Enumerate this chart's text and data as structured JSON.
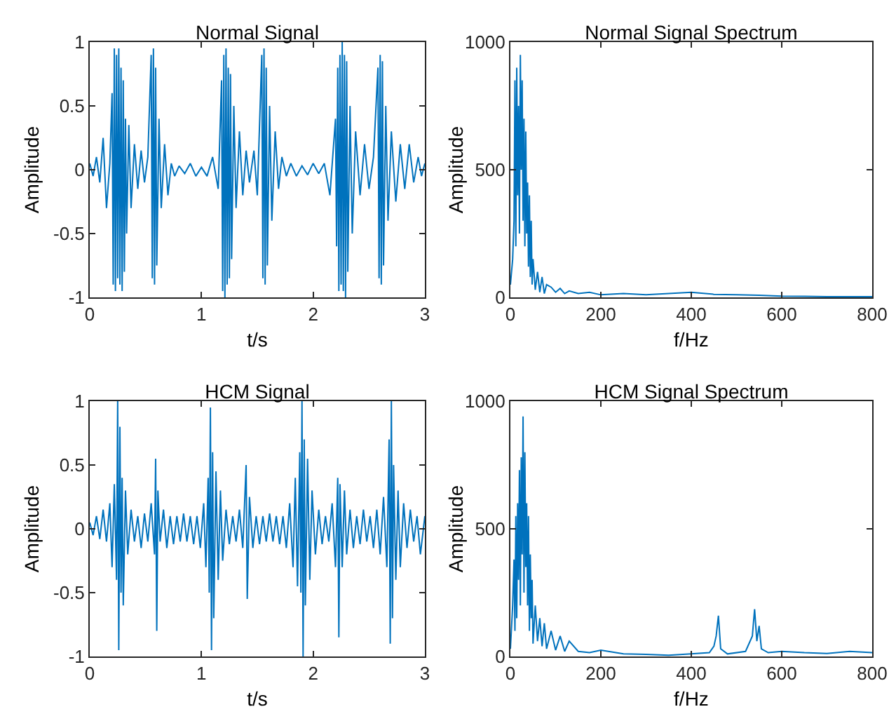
{
  "chart_data": [
    {
      "type": "line",
      "title": "Normal Signal",
      "xlabel": "t/s",
      "ylabel": "Amplitude",
      "color": "#0072bd",
      "xlim": [
        0,
        3
      ],
      "ylim": [
        -1,
        1
      ],
      "xticks": [
        0,
        1,
        2,
        3
      ],
      "yticks": [
        -1,
        -0.5,
        0,
        0.5,
        1
      ],
      "x": [
        0,
        0.03,
        0.06,
        0.09,
        0.12,
        0.15,
        0.18,
        0.2,
        0.21,
        0.22,
        0.23,
        0.24,
        0.25,
        0.26,
        0.27,
        0.28,
        0.29,
        0.3,
        0.31,
        0.32,
        0.33,
        0.35,
        0.37,
        0.4,
        0.43,
        0.46,
        0.49,
        0.52,
        0.55,
        0.56,
        0.57,
        0.58,
        0.59,
        0.6,
        0.62,
        0.64,
        0.67,
        0.7,
        0.73,
        0.76,
        0.8,
        0.85,
        0.9,
        0.95,
        1.0,
        1.05,
        1.1,
        1.15,
        1.18,
        1.19,
        1.2,
        1.21,
        1.22,
        1.23,
        1.24,
        1.25,
        1.26,
        1.27,
        1.29,
        1.31,
        1.34,
        1.37,
        1.4,
        1.43,
        1.47,
        1.5,
        1.54,
        1.55,
        1.56,
        1.57,
        1.58,
        1.59,
        1.61,
        1.63,
        1.66,
        1.69,
        1.72,
        1.76,
        1.8,
        1.85,
        1.9,
        1.95,
        2.0,
        2.05,
        2.1,
        2.15,
        2.2,
        2.21,
        2.22,
        2.23,
        2.24,
        2.25,
        2.26,
        2.27,
        2.28,
        2.29,
        2.3,
        2.31,
        2.33,
        2.35,
        2.38,
        2.42,
        2.46,
        2.5,
        2.54,
        2.58,
        2.59,
        2.6,
        2.61,
        2.62,
        2.63,
        2.65,
        2.67,
        2.7,
        2.74,
        2.78,
        2.82,
        2.86,
        2.9,
        2.94,
        2.97,
        3.0
      ],
      "values": [
        0.05,
        -0.05,
        0.1,
        -0.1,
        0.25,
        -0.3,
        0.05,
        0.6,
        -0.9,
        0.95,
        -0.95,
        0.9,
        -0.85,
        0.95,
        -0.9,
        0.8,
        -0.95,
        0.7,
        -0.8,
        0.4,
        -0.5,
        0.35,
        -0.3,
        0.2,
        -0.15,
        0.15,
        -0.1,
        0.1,
        0.9,
        -0.85,
        0.95,
        -0.9,
        0.8,
        -0.75,
        0.4,
        -0.3,
        0.2,
        -0.2,
        0.05,
        -0.05,
        0.03,
        -0.03,
        0.05,
        -0.05,
        0.02,
        -0.05,
        0.1,
        -0.15,
        0.7,
        -0.95,
        0.9,
        -1.0,
        0.95,
        -0.9,
        0.8,
        -0.85,
        0.75,
        -0.7,
        0.5,
        -0.3,
        0.3,
        -0.2,
        0.15,
        -0.1,
        0.15,
        -0.2,
        0.9,
        -0.85,
        0.95,
        -0.9,
        0.8,
        -0.75,
        0.5,
        -0.4,
        0.3,
        -0.15,
        0.1,
        -0.05,
        0.05,
        -0.05,
        0.03,
        -0.04,
        0.05,
        -0.03,
        0.05,
        -0.2,
        0.4,
        -0.6,
        0.8,
        -0.95,
        0.9,
        -0.9,
        1.0,
        -0.95,
        0.9,
        -1.0,
        0.85,
        -0.8,
        0.5,
        -0.5,
        0.3,
        -0.2,
        0.2,
        -0.15,
        0.1,
        0.8,
        -0.85,
        0.9,
        -0.9,
        0.85,
        -0.75,
        0.5,
        -0.4,
        0.3,
        -0.25,
        0.2,
        -0.15,
        0.2,
        -0.1,
        0.1,
        -0.05,
        0.05
      ]
    },
    {
      "type": "line",
      "title": "Normal Signal Spectrum",
      "xlabel": "f/Hz",
      "ylabel": "Amplitude",
      "color": "#0072bd",
      "xlim": [
        0,
        800
      ],
      "ylim": [
        0,
        1000
      ],
      "xticks": [
        0,
        200,
        400,
        600,
        800
      ],
      "yticks": [
        0,
        500,
        1000
      ],
      "x": [
        0,
        5,
        8,
        10,
        12,
        14,
        16,
        18,
        20,
        22,
        24,
        26,
        28,
        30,
        32,
        34,
        36,
        38,
        40,
        42,
        44,
        46,
        48,
        50,
        55,
        60,
        65,
        70,
        75,
        80,
        90,
        100,
        110,
        120,
        130,
        150,
        175,
        200,
        250,
        300,
        350,
        400,
        450,
        500,
        550,
        600,
        650,
        700,
        750,
        800
      ],
      "values": [
        50,
        150,
        300,
        850,
        200,
        900,
        400,
        750,
        250,
        950,
        500,
        850,
        300,
        700,
        200,
        650,
        250,
        450,
        120,
        400,
        80,
        300,
        50,
        150,
        30,
        100,
        20,
        80,
        15,
        50,
        40,
        20,
        35,
        15,
        25,
        15,
        20,
        10,
        15,
        10,
        15,
        20,
        12,
        10,
        8,
        5,
        4,
        3,
        3,
        3
      ]
    },
    {
      "type": "line",
      "title": "HCM Signal",
      "xlabel": "t/s",
      "ylabel": "Amplitude",
      "color": "#0072bd",
      "xlim": [
        0,
        3
      ],
      "ylim": [
        -1,
        1
      ],
      "xticks": [
        0,
        1,
        2,
        3
      ],
      "yticks": [
        -1,
        -0.5,
        0,
        0.5,
        1
      ],
      "x": [
        0,
        0.03,
        0.06,
        0.09,
        0.12,
        0.15,
        0.18,
        0.2,
        0.22,
        0.24,
        0.25,
        0.26,
        0.27,
        0.28,
        0.29,
        0.3,
        0.32,
        0.34,
        0.37,
        0.4,
        0.43,
        0.46,
        0.49,
        0.52,
        0.55,
        0.58,
        0.59,
        0.6,
        0.61,
        0.63,
        0.66,
        0.69,
        0.72,
        0.75,
        0.78,
        0.81,
        0.84,
        0.87,
        0.9,
        0.93,
        0.96,
        0.99,
        1.02,
        1.04,
        1.06,
        1.07,
        1.08,
        1.09,
        1.1,
        1.11,
        1.13,
        1.15,
        1.17,
        1.19,
        1.22,
        1.25,
        1.28,
        1.31,
        1.34,
        1.37,
        1.4,
        1.41,
        1.43,
        1.46,
        1.49,
        1.52,
        1.55,
        1.58,
        1.61,
        1.64,
        1.67,
        1.7,
        1.73,
        1.76,
        1.79,
        1.82,
        1.84,
        1.86,
        1.88,
        1.89,
        1.9,
        1.91,
        1.92,
        1.93,
        1.95,
        1.97,
        1.99,
        2.02,
        2.05,
        2.08,
        2.11,
        2.14,
        2.17,
        2.2,
        2.22,
        2.23,
        2.24,
        2.26,
        2.28,
        2.3,
        2.33,
        2.36,
        2.39,
        2.42,
        2.45,
        2.48,
        2.51,
        2.54,
        2.57,
        2.6,
        2.63,
        2.66,
        2.68,
        2.69,
        2.7,
        2.71,
        2.72,
        2.74,
        2.76,
        2.78,
        2.81,
        2.84,
        2.87,
        2.9,
        2.93,
        2.96,
        3.0
      ],
      "values": [
        0.05,
        -0.05,
        0.1,
        -0.08,
        0.15,
        -0.1,
        0.2,
        -0.3,
        0.35,
        -0.4,
        1.0,
        -0.95,
        0.8,
        -0.5,
        0.4,
        -0.6,
        0.3,
        -0.2,
        0.15,
        -0.1,
        0.1,
        -0.15,
        0.12,
        -0.1,
        0.2,
        -0.2,
        0.55,
        -0.8,
        0.3,
        -0.1,
        0.15,
        -0.15,
        0.1,
        -0.12,
        0.1,
        -0.1,
        0.12,
        -0.1,
        0.1,
        -0.12,
        0.1,
        -0.15,
        0.2,
        -0.3,
        0.4,
        -0.5,
        0.95,
        -0.95,
        0.6,
        -0.7,
        0.45,
        -0.4,
        0.3,
        -0.25,
        0.15,
        -0.12,
        0.1,
        -0.1,
        0.15,
        -0.15,
        0.5,
        -0.55,
        0.25,
        -0.15,
        0.1,
        -0.12,
        0.1,
        -0.1,
        0.12,
        -0.1,
        0.1,
        -0.12,
        0.1,
        -0.15,
        0.2,
        -0.3,
        0.4,
        -0.45,
        0.6,
        -0.5,
        1.0,
        -1.0,
        0.7,
        -0.6,
        0.55,
        -0.4,
        0.3,
        -0.2,
        0.15,
        -0.12,
        0.1,
        -0.1,
        0.2,
        -0.3,
        0.4,
        -0.85,
        0.35,
        -0.3,
        0.3,
        -0.2,
        0.15,
        -0.15,
        0.1,
        -0.12,
        0.15,
        -0.1,
        0.1,
        -0.15,
        0.15,
        -0.2,
        0.25,
        -0.3,
        0.7,
        -0.9,
        1.0,
        -0.7,
        0.5,
        -0.4,
        0.3,
        -0.3,
        0.2,
        -0.15,
        0.15,
        -0.1,
        0.1,
        -0.2,
        0.1
      ]
    },
    {
      "type": "line",
      "title": "HCM Signal Spectrum",
      "xlabel": "f/Hz",
      "ylabel": "Amplitude",
      "color": "#0072bd",
      "xlim": [
        0,
        800
      ],
      "ylim": [
        0,
        1000
      ],
      "xticks": [
        0,
        200,
        400,
        600,
        800
      ],
      "yticks": [
        0,
        500,
        1000
      ],
      "x": [
        0,
        5,
        8,
        10,
        12,
        14,
        16,
        18,
        20,
        22,
        24,
        26,
        28,
        30,
        32,
        34,
        36,
        38,
        40,
        42,
        44,
        46,
        48,
        50,
        55,
        60,
        65,
        70,
        75,
        80,
        90,
        100,
        110,
        120,
        130,
        150,
        175,
        200,
        250,
        300,
        350,
        400,
        440,
        450,
        455,
        460,
        465,
        480,
        520,
        535,
        540,
        545,
        550,
        555,
        570,
        600,
        650,
        700,
        750,
        800
      ],
      "values": [
        30,
        200,
        380,
        100,
        550,
        150,
        600,
        300,
        730,
        200,
        780,
        400,
        940,
        250,
        800,
        350,
        600,
        200,
        550,
        100,
        400,
        150,
        300,
        50,
        200,
        60,
        150,
        40,
        130,
        30,
        100,
        25,
        80,
        20,
        60,
        20,
        15,
        25,
        10,
        8,
        5,
        10,
        15,
        40,
        80,
        160,
        30,
        10,
        20,
        80,
        185,
        60,
        120,
        30,
        15,
        20,
        15,
        12,
        20,
        15
      ]
    }
  ]
}
